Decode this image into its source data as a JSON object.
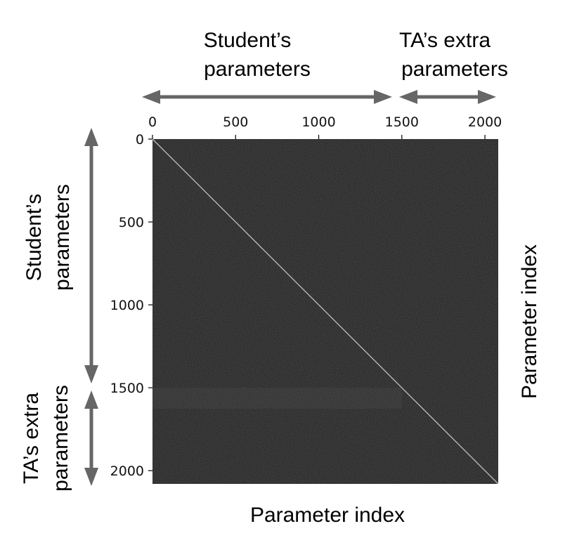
{
  "chart_data": {
    "type": "heatmap",
    "title": "",
    "xlabel": "Parameter index",
    "ylabel": "Parameter index",
    "xlim": [
      0,
      2080
    ],
    "ylim": [
      0,
      2080
    ],
    "y_inverted": true,
    "x_ticks": [
      0,
      500,
      1000,
      1500,
      2000
    ],
    "y_ticks": [
      0,
      500,
      1000,
      1500,
      2000
    ],
    "x_tick_labels": [
      "0",
      "500",
      "1000",
      "1500",
      "2000"
    ],
    "y_tick_labels": [
      "0",
      "500",
      "1000",
      "1500",
      "2000"
    ],
    "x_axis_position": "top",
    "ylabel_position": "right",
    "grid": false,
    "diagonal": true,
    "student_boundary": 1500,
    "annotations": {
      "top_student": [
        "Student’s",
        "parameters"
      ],
      "top_ta": [
        "TA’s extra",
        "parameters"
      ],
      "left_student": [
        "Student’s",
        "parameters"
      ],
      "left_ta": [
        "TA’s extra",
        "parameters"
      ]
    },
    "colors": {
      "background": "#1b1b1b",
      "diagonal": "#bdbdbd",
      "arrow": "#666666"
    }
  }
}
